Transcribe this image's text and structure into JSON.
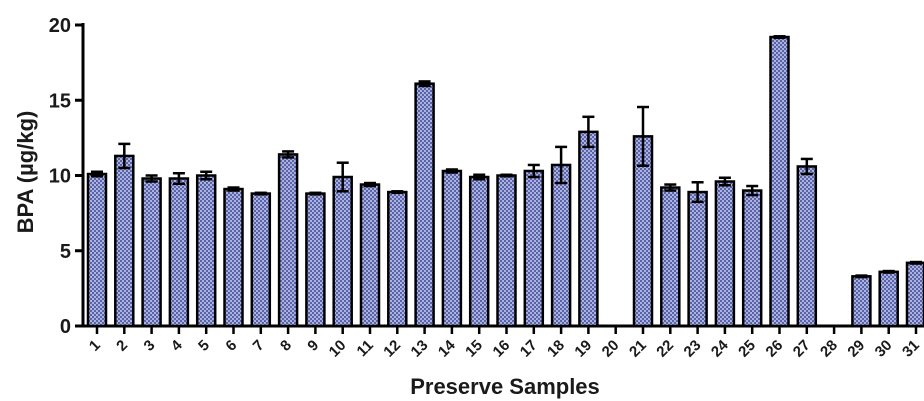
{
  "chart_data": {
    "type": "bar",
    "title": "",
    "xlabel": "Preserve Samples",
    "ylabel": "BPA (µg/kg)",
    "ylim": [
      0,
      20
    ],
    "yticks": [
      "0",
      "5",
      "10",
      "15",
      "20"
    ],
    "grid": false,
    "error_bars": true,
    "bar_fill": "#9fa8d8",
    "bar_pattern": "crosshatch",
    "categories": [
      "1",
      "2",
      "3",
      "4",
      "5",
      "6",
      "7",
      "8",
      "9",
      "10",
      "11",
      "12",
      "13",
      "14",
      "15",
      "16",
      "17",
      "18",
      "19",
      "20",
      "21",
      "22",
      "23",
      "24",
      "25",
      "26",
      "27",
      "28",
      "29",
      "30",
      "31"
    ],
    "values": [
      10.1,
      11.3,
      9.8,
      9.8,
      10.0,
      9.1,
      8.8,
      11.4,
      8.8,
      9.9,
      9.4,
      8.9,
      16.1,
      10.3,
      9.9,
      10.0,
      10.3,
      10.7,
      12.9,
      null,
      12.6,
      9.2,
      8.9,
      9.6,
      9.0,
      19.2,
      10.6,
      null,
      3.3,
      3.6,
      4.2
    ],
    "errors": [
      0.15,
      0.8,
      0.2,
      0.35,
      0.25,
      0.1,
      0.05,
      0.2,
      0.05,
      0.95,
      0.1,
      0.05,
      0.15,
      0.1,
      0.15,
      0.05,
      0.4,
      1.2,
      1.0,
      null,
      1.95,
      0.2,
      0.65,
      0.25,
      0.3,
      0.05,
      0.5,
      null,
      0.05,
      0.05,
      0.05
    ]
  }
}
